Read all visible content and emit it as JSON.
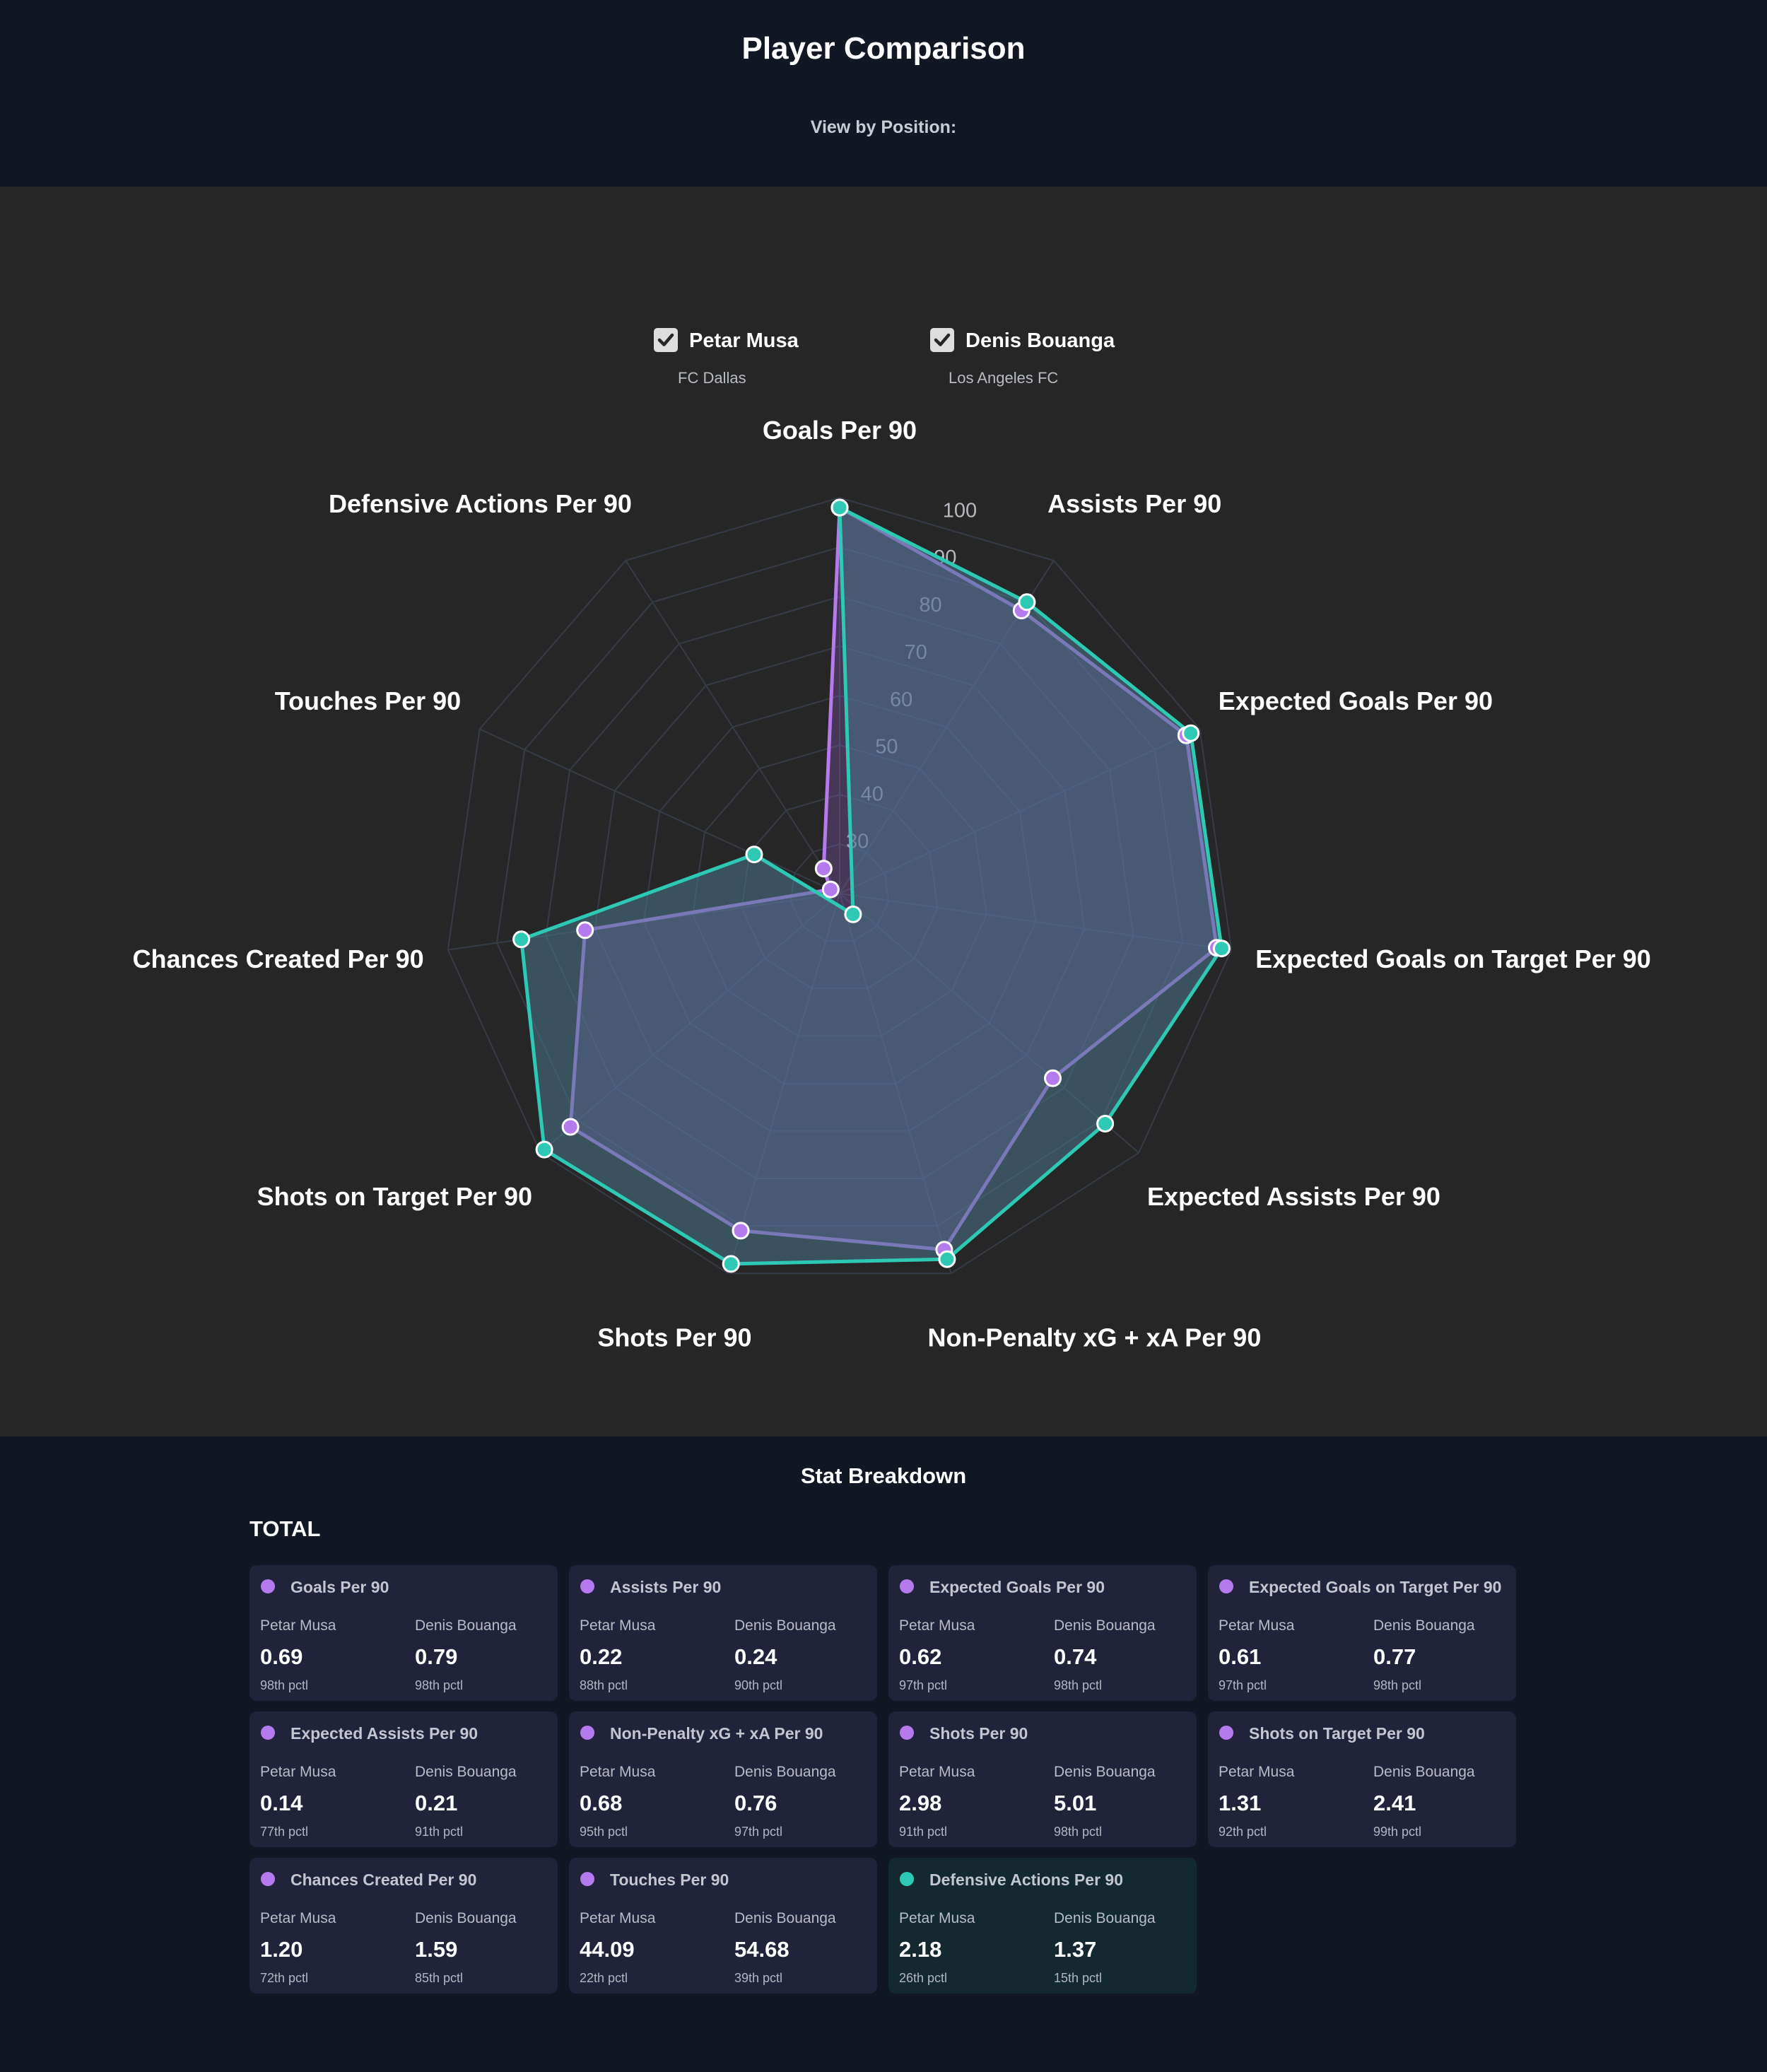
{
  "header": {
    "title": "Player Comparison",
    "subtitle": "View by Position:"
  },
  "legend": [
    {
      "name": "Petar Musa",
      "team": "FC Dallas",
      "checked": true,
      "color": "#b57bee"
    },
    {
      "name": "Denis Bouanga",
      "team": "Los Angeles FC",
      "checked": true,
      "color": "#2ec9b5"
    }
  ],
  "chart_data": {
    "type": "radar",
    "categories": [
      "Goals Per 90",
      "Assists Per 90",
      "Expected Goals Per 90",
      "Expected Goals on Target Per 90",
      "Expected Assists Per 90",
      "Non-Penalty xG + xA Per 90",
      "Shots Per 90",
      "Shots on Target Per 90",
      "Chances Created Per 90",
      "Touches Per 90",
      "Defensive Actions Per 90"
    ],
    "series": [
      {
        "name": "Petar Musa",
        "color": "#b57bee",
        "values": [
          98,
          88,
          97,
          97,
          77,
          95,
          91,
          92,
          72,
          22,
          26
        ]
      },
      {
        "name": "Denis Bouanga",
        "color": "#2ec9b5",
        "values": [
          98,
          90,
          98,
          98,
          91,
          97,
          98,
          99,
          85,
          39,
          15
        ]
      }
    ],
    "r_ticks": [
      30,
      40,
      50,
      60,
      70,
      80,
      90,
      100
    ],
    "r_range": [
      20,
      100
    ]
  },
  "breakdown": {
    "title": "Stat Breakdown",
    "group": "TOTAL",
    "player_a": "Petar Musa",
    "player_b": "Denis Bouanga",
    "cards": [
      {
        "title": "Goals Per 90",
        "a": "0.69",
        "a_pct": "98th pctl",
        "b": "0.79",
        "b_pct": "98th pctl",
        "dot": "#b57bee"
      },
      {
        "title": "Assists Per 90",
        "a": "0.22",
        "a_pct": "88th pctl",
        "b": "0.24",
        "b_pct": "90th pctl",
        "dot": "#b57bee"
      },
      {
        "title": "Expected Goals Per 90",
        "a": "0.62",
        "a_pct": "97th pctl",
        "b": "0.74",
        "b_pct": "98th pctl",
        "dot": "#b57bee"
      },
      {
        "title": "Expected Goals on Target Per 90",
        "a": "0.61",
        "a_pct": "97th pctl",
        "b": "0.77",
        "b_pct": "98th pctl",
        "dot": "#b57bee"
      },
      {
        "title": "Expected Assists Per 90",
        "a": "0.14",
        "a_pct": "77th pctl",
        "b": "0.21",
        "b_pct": "91th pctl",
        "dot": "#b57bee"
      },
      {
        "title": "Non-Penalty xG + xA Per 90",
        "a": "0.68",
        "a_pct": "95th pctl",
        "b": "0.76",
        "b_pct": "97th pctl",
        "dot": "#b57bee"
      },
      {
        "title": "Shots Per 90",
        "a": "2.98",
        "a_pct": "91th pctl",
        "b": "5.01",
        "b_pct": "98th pctl",
        "dot": "#b57bee"
      },
      {
        "title": "Shots on Target Per 90",
        "a": "1.31",
        "a_pct": "92th pctl",
        "b": "2.41",
        "b_pct": "99th pctl",
        "dot": "#b57bee"
      },
      {
        "title": "Chances Created Per 90",
        "a": "1.20",
        "a_pct": "72th pctl",
        "b": "1.59",
        "b_pct": "85th pctl",
        "dot": "#b57bee"
      },
      {
        "title": "Touches Per 90",
        "a": "44.09",
        "a_pct": "22th pctl",
        "b": "54.68",
        "b_pct": "39th pctl",
        "dot": "#b57bee"
      },
      {
        "title": "Defensive Actions Per 90",
        "a": "2.18",
        "a_pct": "26th pctl",
        "b": "1.37",
        "b_pct": "15th pctl",
        "dot": "#2ec9b5",
        "highlight": true
      }
    ]
  }
}
